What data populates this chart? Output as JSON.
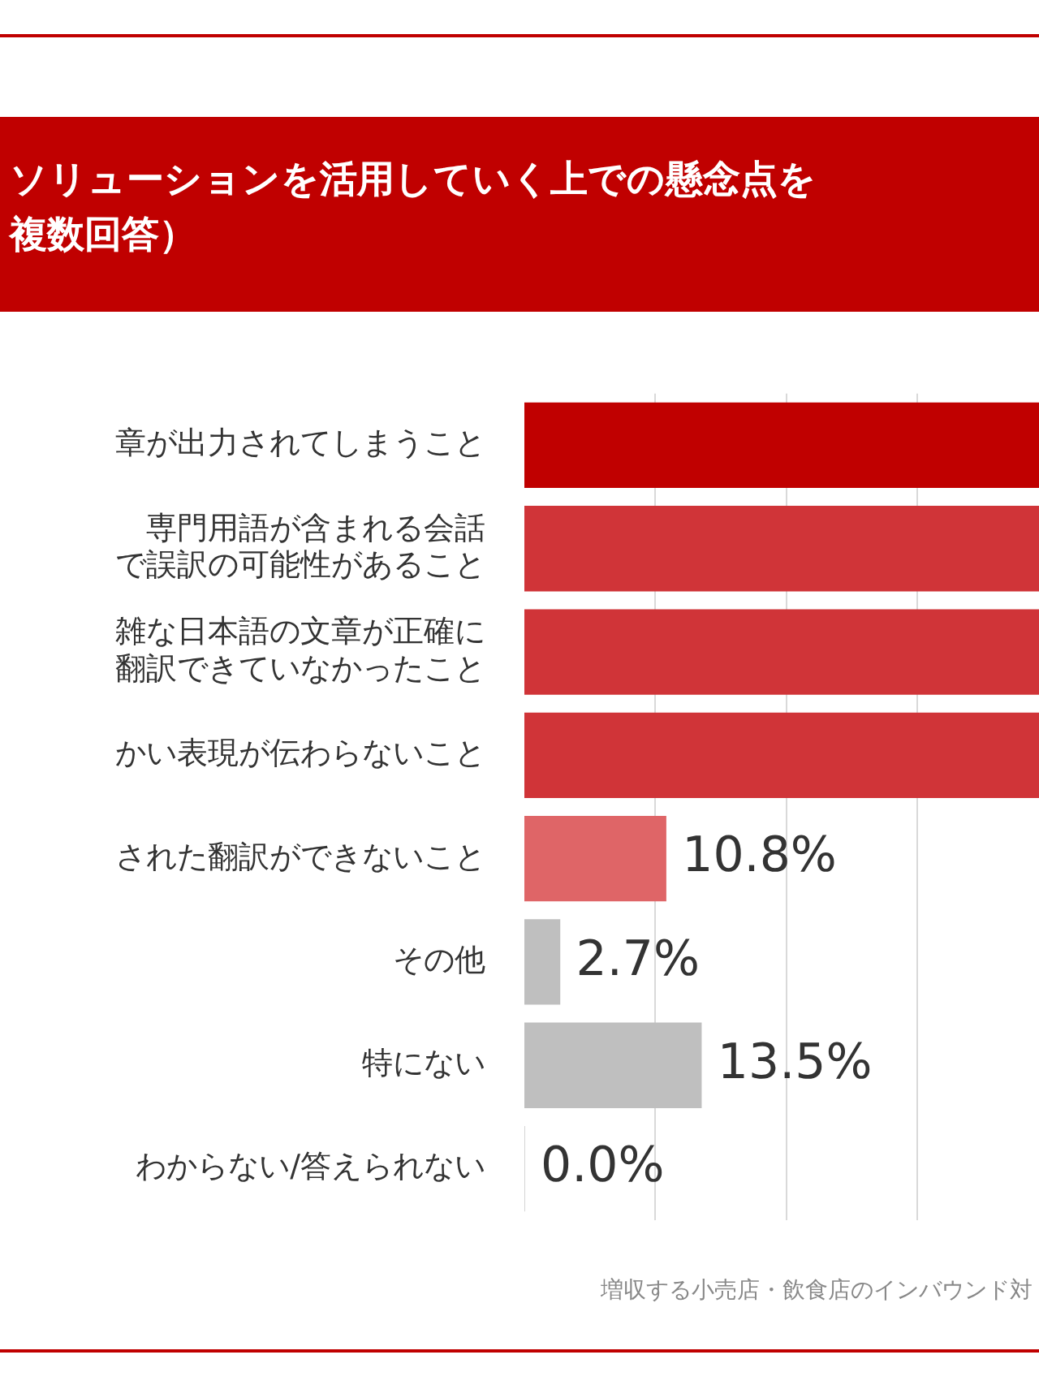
{
  "chart_data": {
    "type": "bar",
    "orientation": "horizontal",
    "title": "ソリューションを活用していく上での懸念点を複数回答）",
    "categories": [
      "章が出力されてしまうこと",
      "専門用語が含まれる会話で誤訳の可能性があること",
      "雑な日本語の文章が正確に翻訳できていなかったこと",
      "かい表現が伝わらないこと",
      "された翻訳ができないこと",
      "その他",
      "特にない",
      "わからない/答えられない"
    ],
    "values": [
      39.3,
      39.3,
      39.3,
      39.3,
      10.8,
      2.7,
      13.5,
      0.0
    ],
    "colors": [
      "#c00000",
      "#d03438",
      "#d03438",
      "#d03438",
      "#df6567",
      "#bfbfbf",
      "#bfbfbf",
      "#bfbfbf"
    ],
    "value_labels": [
      null,
      null,
      null,
      null,
      "10.8%",
      "2.7%",
      "13.5%",
      "0.0%"
    ],
    "xlim": [
      0,
      39.3
    ],
    "xticks": [
      {
        "value": 10,
        "label": null
      },
      {
        "value": 20,
        "label": null
      },
      {
        "value": 30,
        "label": null
      }
    ],
    "grid": "x",
    "tick_labels": "y",
    "annotations": [
      "増収する小売店・飲食店のインバウンド対"
    ]
  }
}
